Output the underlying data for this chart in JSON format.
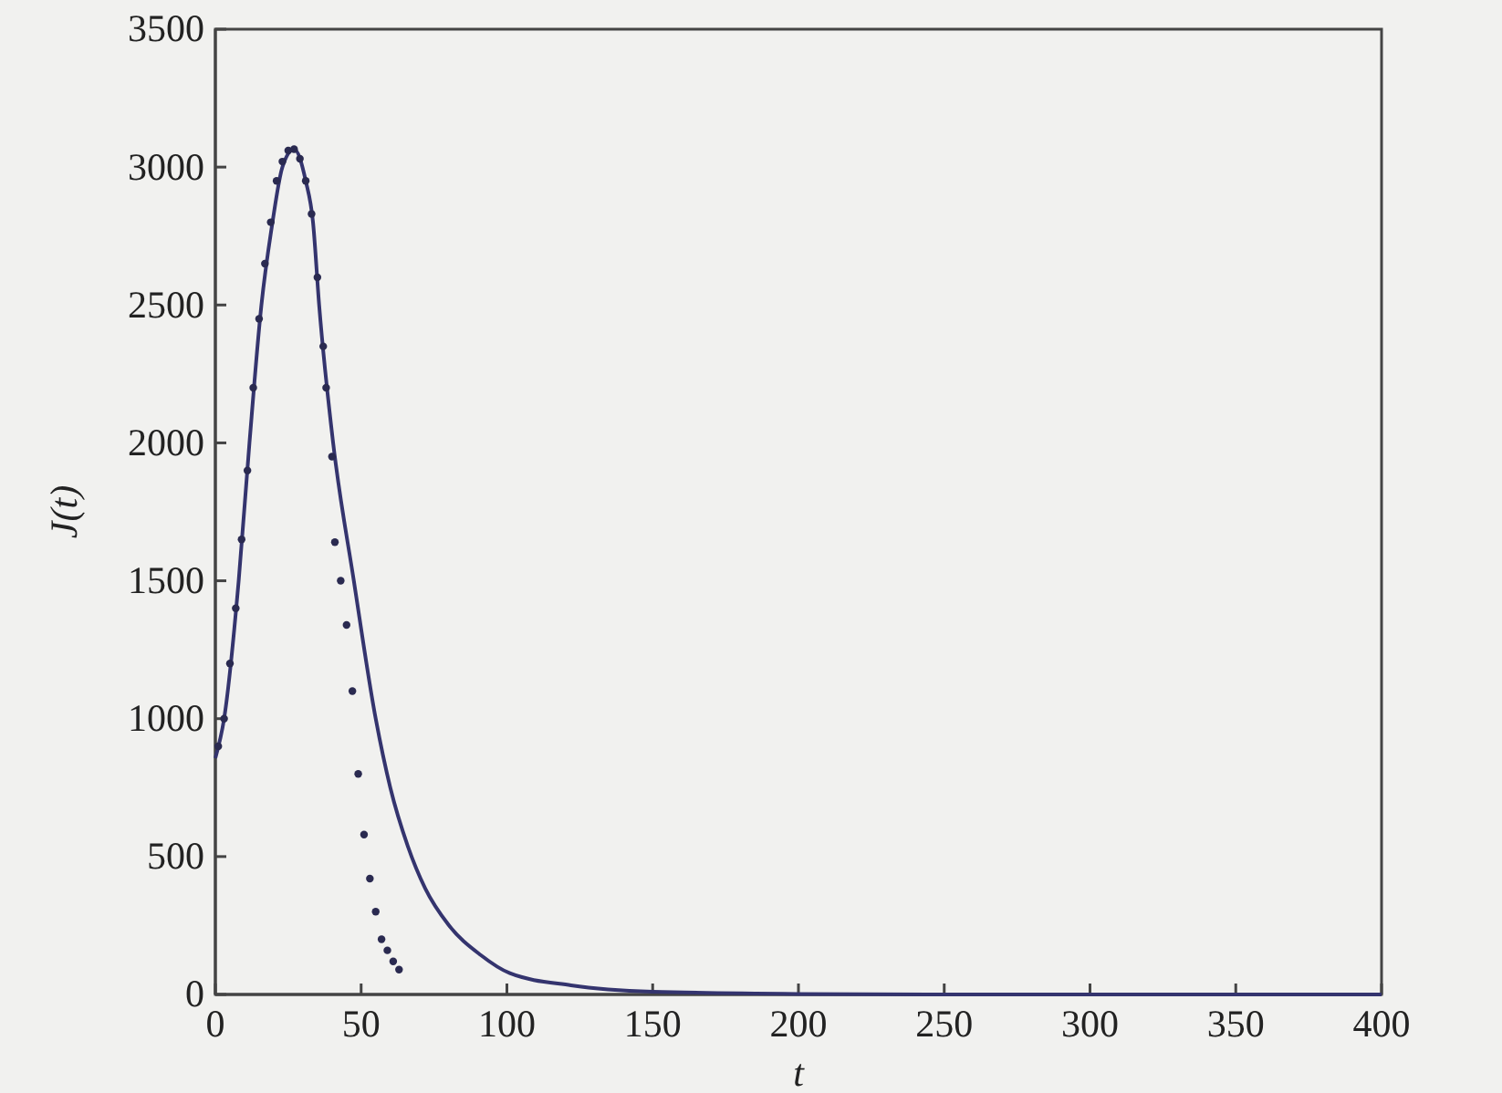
{
  "chart_data": {
    "type": "line",
    "xlabel": "t",
    "ylabel": "J(t)",
    "xlim": [
      0,
      400
    ],
    "ylim": [
      0,
      3500
    ],
    "xticks": [
      0,
      50,
      100,
      150,
      200,
      250,
      300,
      350,
      400
    ],
    "yticks": [
      0,
      500,
      1000,
      1500,
      2000,
      2500,
      3000,
      3500
    ],
    "grid": false,
    "series": [
      {
        "color": "#34346e",
        "x": [
          0,
          3,
          8,
          11.7,
          15.8,
          19.6,
          23,
          27,
          31,
          33.5,
          35.6,
          40.4,
          47.5,
          55,
          60,
          66,
          72,
          80,
          91,
          101,
          122,
          150,
          200,
          250,
          400
        ],
        "values": [
          857,
          1000,
          1500,
          2000,
          2500,
          2800,
          3000,
          3065,
          2950,
          2800,
          2500,
          2000,
          1500,
          1000,
          750,
          538,
          384,
          252,
          143,
          77,
          33,
          10,
          2,
          0,
          0
        ]
      },
      {
        "type": "scatter",
        "marker": "circle",
        "color": "#2a2a50",
        "x": [
          1,
          3,
          5,
          7,
          9,
          11,
          13,
          15,
          17,
          19,
          21,
          23,
          25,
          27,
          29,
          31,
          33,
          35,
          37,
          38,
          40,
          41,
          43,
          45,
          47,
          49,
          51,
          53,
          55,
          57,
          59,
          61,
          63
        ],
        "values": [
          900,
          1000,
          1200,
          1400,
          1650,
          1900,
          2200,
          2450,
          2650,
          2800,
          2950,
          3020,
          3060,
          3065,
          3030,
          2950,
          2830,
          2600,
          2350,
          2200,
          1950,
          1640,
          1500,
          1340,
          1100,
          800,
          580,
          420,
          300,
          200,
          160,
          120,
          90
        ]
      }
    ]
  }
}
